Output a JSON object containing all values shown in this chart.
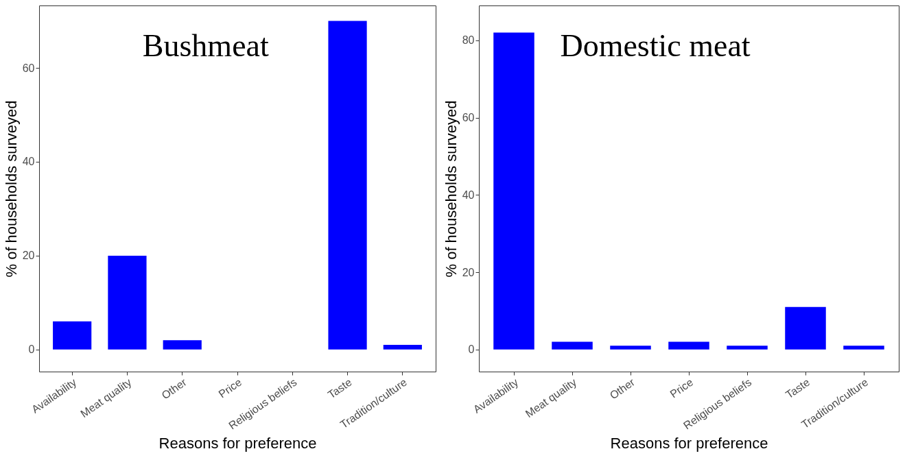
{
  "chart_data": [
    {
      "type": "bar",
      "title": "Bushmeat",
      "xlabel": "Reasons for preference",
      "ylabel": "% of households surveyed",
      "categories": [
        "Availability",
        "Meat quality",
        "Other",
        "Price",
        "Religious beliefs",
        "Taste",
        "Tradition/culture"
      ],
      "values": [
        6,
        20,
        2,
        0,
        0,
        70,
        1
      ],
      "color": "#0000ff",
      "ylim": [
        -4.7,
        73.3
      ],
      "yticks": [
        0,
        20,
        40,
        60
      ],
      "grid": false
    },
    {
      "type": "bar",
      "title": "Domestic meat",
      "xlabel": "Reasons for preference",
      "ylabel": "% of households surveyed",
      "categories": [
        "Availability",
        "Meat quality",
        "Other",
        "Price",
        "Religious beliefs",
        "Taste",
        "Tradition/culture"
      ],
      "values": [
        82,
        2,
        1,
        2,
        1,
        11,
        1
      ],
      "color": "#0000ff",
      "ylim": [
        -5.7,
        89
      ],
      "yticks": [
        0,
        20,
        40,
        60,
        80
      ],
      "grid": false
    }
  ]
}
